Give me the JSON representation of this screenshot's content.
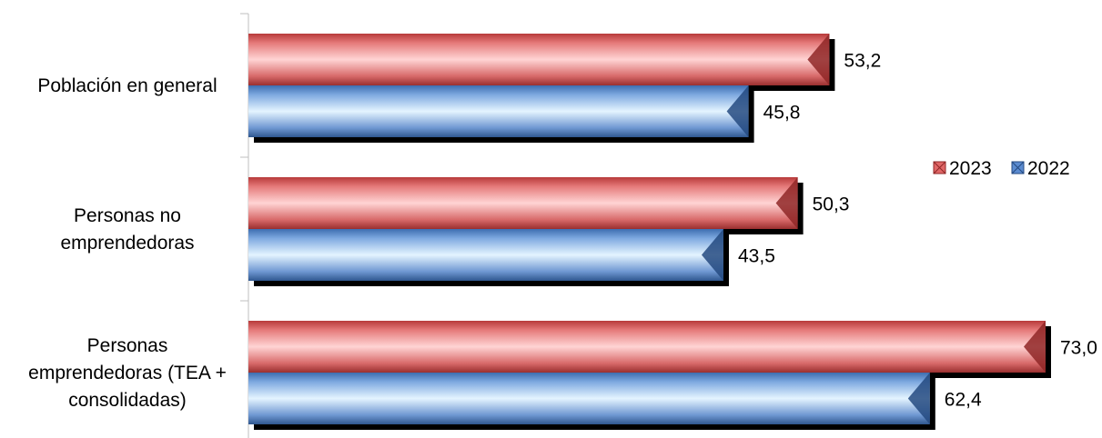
{
  "chart_data": {
    "type": "bar",
    "orientation": "horizontal",
    "categories": [
      [
        "Población en general"
      ],
      [
        "Personas no",
        "emprendedoras"
      ],
      [
        "Personas",
        "emprendedoras (TEA +",
        "consolidadas)"
      ]
    ],
    "series": [
      {
        "name": "2023",
        "values": [
          53.2,
          50.3,
          73.0
        ],
        "color": "#e06666",
        "value_labels": [
          "53,2",
          "50,3",
          "73,0"
        ]
      },
      {
        "name": "2022",
        "values": [
          45.8,
          43.5,
          62.4
        ],
        "color": "#5b8bd0",
        "value_labels": [
          "45,8",
          "43,5",
          "62,4"
        ]
      }
    ],
    "xlim": [
      0,
      80
    ],
    "legend_position": "right",
    "grid": false
  }
}
